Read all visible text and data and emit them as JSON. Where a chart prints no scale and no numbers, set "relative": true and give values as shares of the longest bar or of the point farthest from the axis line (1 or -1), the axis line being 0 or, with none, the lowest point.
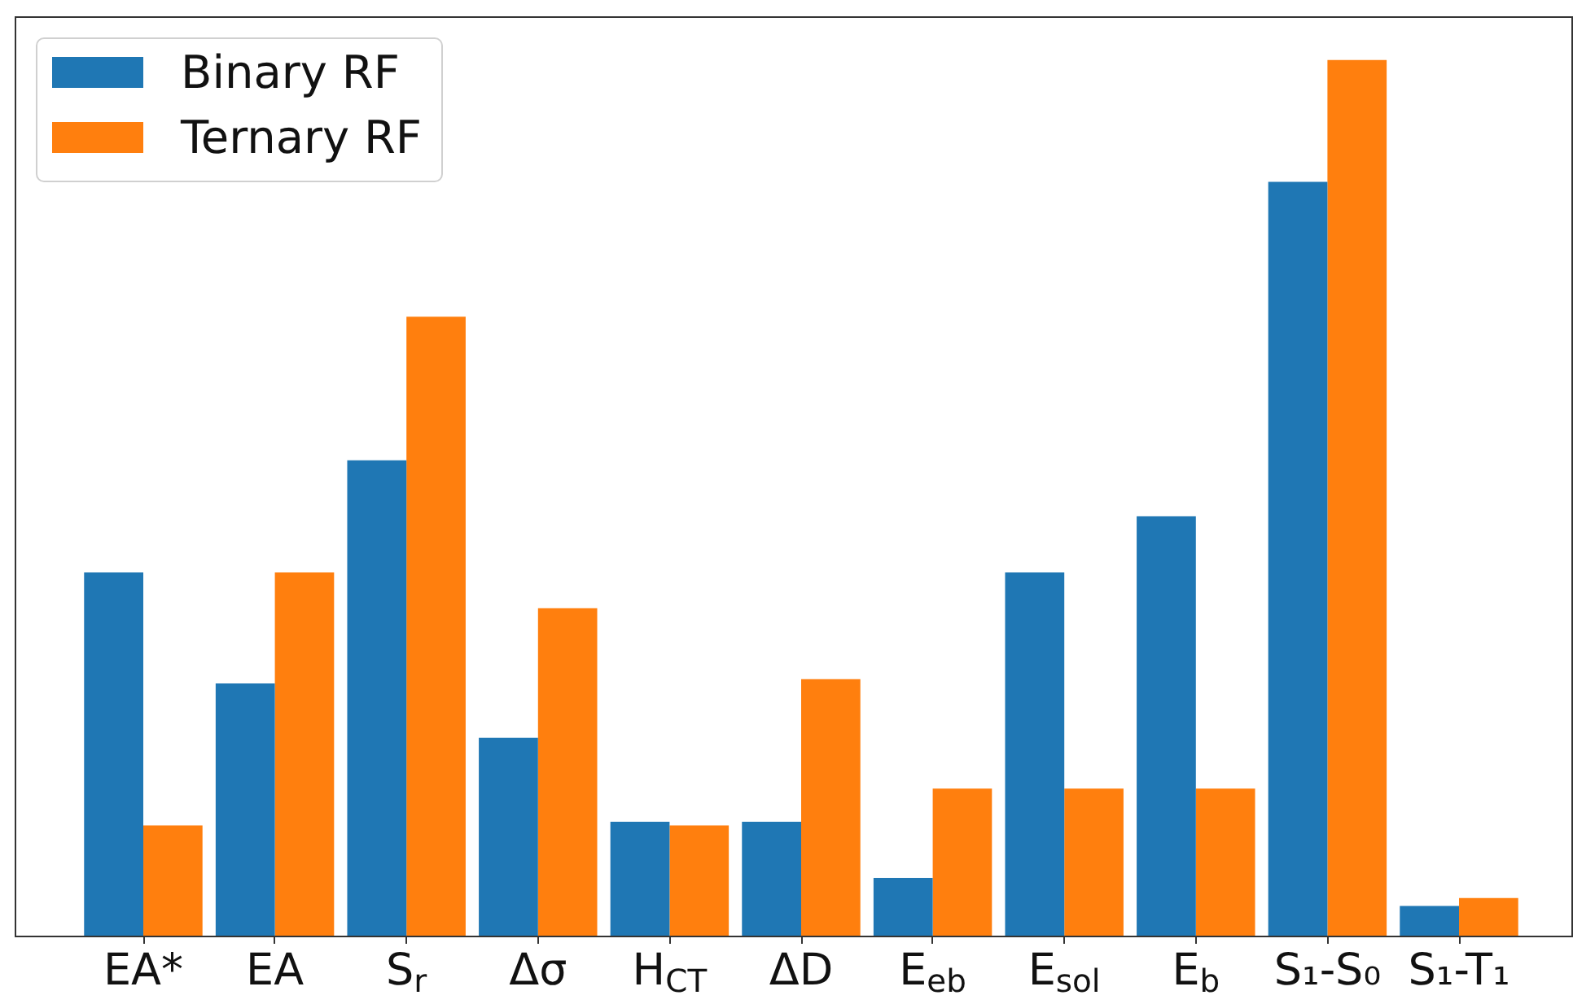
{
  "chart_data": {
    "type": "bar",
    "relative": true,
    "legend": "top left",
    "categories": [
      "EA*",
      "EA",
      "S$_{r}$",
      "Δσ",
      "H$_{CT}$",
      "ΔD",
      "E$_{eb}$",
      "E$_{sol}$",
      "E$_{b}$",
      "S₁-S₀",
      "S₁-T₁"
    ],
    "series": [
      {
        "name": "Binary RF",
        "color": "#1f77b4",
        "values": [
          0.415,
          0.288,
          0.543,
          0.226,
          0.13,
          0.13,
          0.066,
          0.415,
          0.479,
          0.861,
          0.034
        ]
      },
      {
        "name": "Ternary RF",
        "color": "#ff7f0e",
        "values": [
          0.126,
          0.415,
          0.707,
          0.374,
          0.126,
          0.293,
          0.168,
          0.168,
          0.168,
          1,
          0.043
        ]
      }
    ]
  }
}
